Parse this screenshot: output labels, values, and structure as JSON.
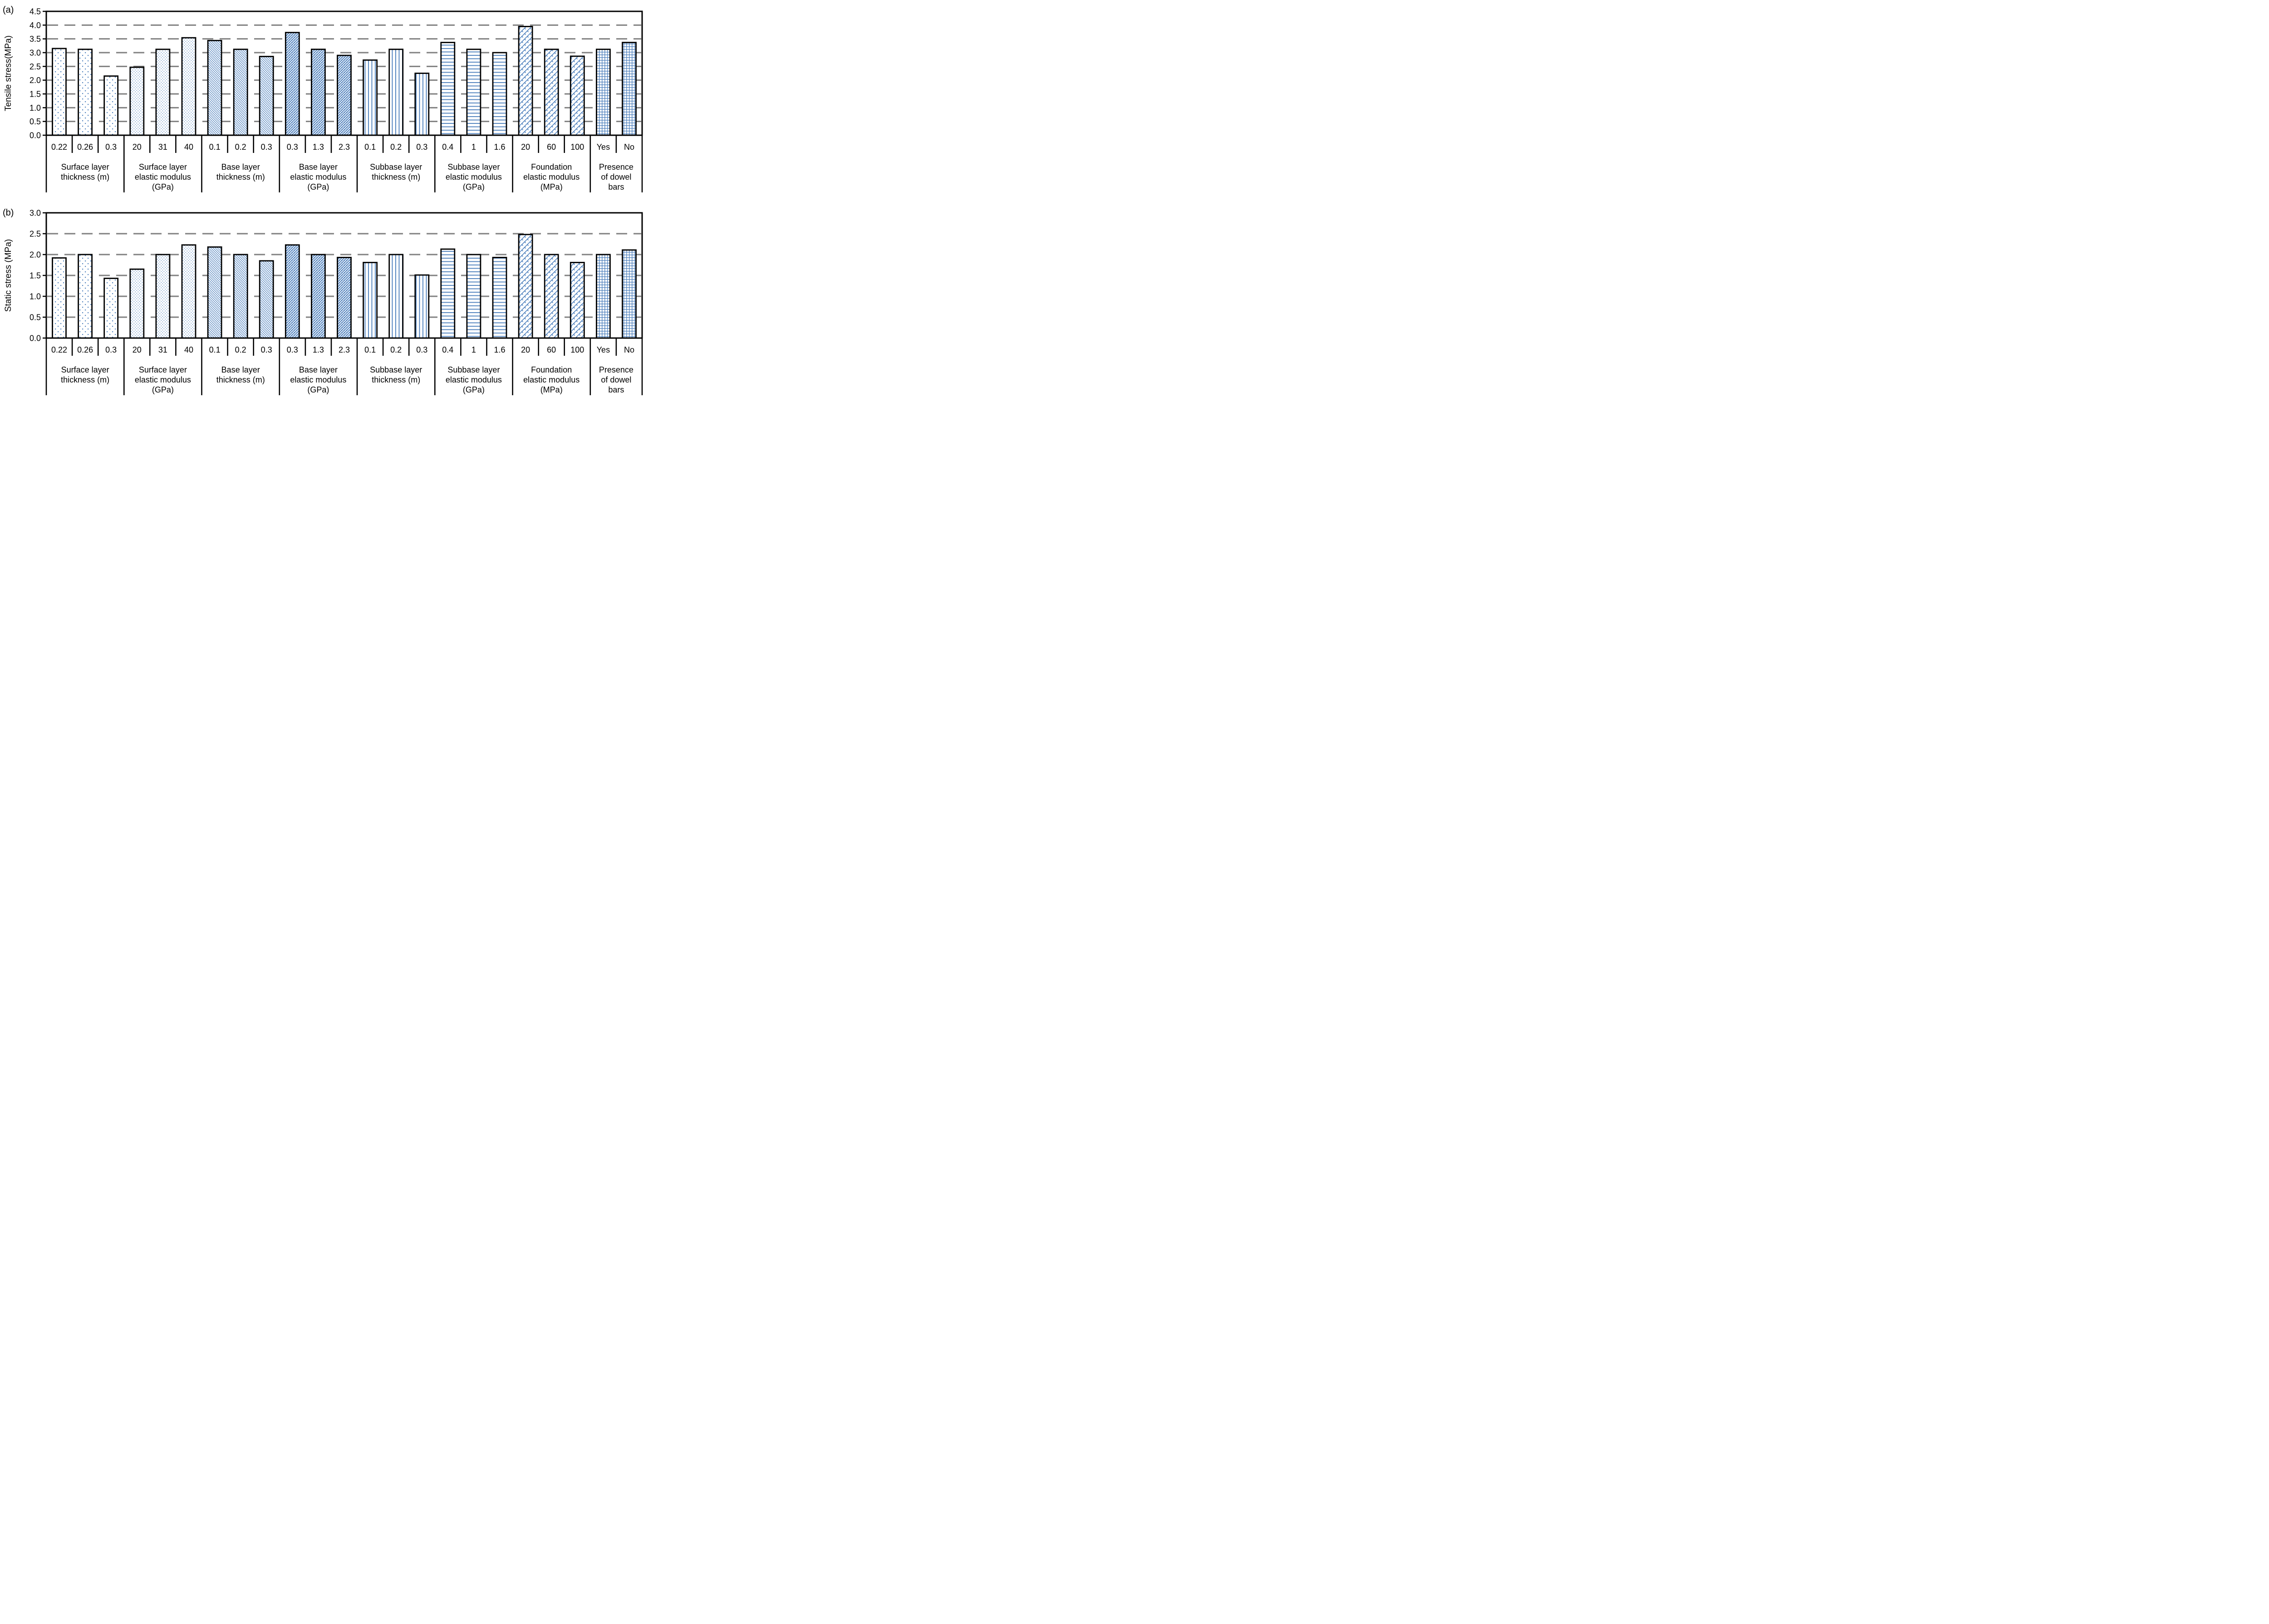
{
  "figure_type": "two-panel grouped bar chart, sensitivity analysis of pavement parameters",
  "colors": {
    "bar_pattern_blue": "#4f81bd",
    "bar_outline": "#000000",
    "gridline_gray": "#808080",
    "text_black": "#000000",
    "background": "#ffffff"
  },
  "chart_data": [
    {
      "type": "bar",
      "panel_letter": "(a)",
      "ylabel": "Tensile stress(MPa)",
      "ylim": [
        0,
        4.5
      ],
      "ytick_step": 0.5,
      "yticks": [
        "4.5",
        "4.0",
        "3.5",
        "3.0",
        "2.5",
        "2.0",
        "1.5",
        "1.0",
        "0.5",
        "0.0"
      ],
      "grid": "horizontal dashed gray at every 0.5",
      "legend": "none",
      "groups": [
        {
          "label": "Surface layer thickness (m)",
          "label_lines": [
            "Surface layer",
            "thickness (m)"
          ],
          "pattern": "dots-sparse",
          "categories": [
            "0.22",
            "0.26",
            "0.3"
          ],
          "values": [
            3.15,
            3.12,
            2.15
          ]
        },
        {
          "label": "Surface layer elastic modulus (GPa)",
          "label_lines": [
            "Surface layer",
            "elastic modulus",
            "(GPa)"
          ],
          "pattern": "dots-dense",
          "categories": [
            "20",
            "31",
            "40"
          ],
          "values": [
            2.47,
            3.12,
            3.54
          ]
        },
        {
          "label": "Base layer thickness (m)",
          "label_lines": [
            "Base layer",
            "thickness (m)"
          ],
          "pattern": "diagonal-down",
          "categories": [
            "0.1",
            "0.2",
            "0.3"
          ],
          "values": [
            3.44,
            3.12,
            2.86
          ]
        },
        {
          "label": "Base layer elastic modulus (GPa)",
          "label_lines": [
            "Base layer",
            "elastic modulus",
            "(GPa)"
          ],
          "pattern": "diagonal-up",
          "categories": [
            "0.3",
            "1.3",
            "2.3"
          ],
          "values": [
            3.73,
            3.12,
            2.9
          ]
        },
        {
          "label": "Subbase layer thickness (m)",
          "label_lines": [
            "Subbase layer",
            "thickness (m)"
          ],
          "pattern": "vertical-lines",
          "categories": [
            "0.1",
            "0.2",
            "0.3"
          ],
          "values": [
            2.73,
            3.12,
            2.25
          ]
        },
        {
          "label": "Subbase layer elastic modulus (GPa)",
          "label_lines": [
            "Subbase layer",
            "elastic modulus",
            "(GPa)"
          ],
          "pattern": "horizontal-lines",
          "categories": [
            "0.4",
            "1",
            "1.6"
          ],
          "values": [
            3.37,
            3.12,
            3.0
          ]
        },
        {
          "label": "Foundation elastic modulus (MPa)",
          "label_lines": [
            "Foundation",
            "elastic modulus",
            "(MPa)"
          ],
          "pattern": "diagonal-brick",
          "categories": [
            "20",
            "60",
            "100"
          ],
          "values": [
            3.95,
            3.12,
            2.87
          ]
        },
        {
          "label": "Presence of dowel bars",
          "label_lines": [
            "Presence",
            "of dowel",
            "bars"
          ],
          "pattern": "grid",
          "categories": [
            "Yes",
            "No"
          ],
          "values": [
            3.12,
            3.37
          ]
        }
      ]
    },
    {
      "type": "bar",
      "panel_letter": "(b)",
      "ylabel": "Static stress (MPa)",
      "ylim": [
        0,
        3.0
      ],
      "ytick_step": 0.5,
      "yticks": [
        "3.0",
        "2.5",
        "2.0",
        "1.5",
        "1.0",
        "0.5",
        "0.0"
      ],
      "grid": "horizontal dashed gray at every 0.5",
      "legend": "none",
      "groups": [
        {
          "label": "Surface layer thickness (m)",
          "label_lines": [
            "Surface layer",
            "thickness (m)"
          ],
          "pattern": "dots-sparse",
          "categories": [
            "0.22",
            "0.26",
            "0.3"
          ],
          "values": [
            1.92,
            2.0,
            1.43
          ]
        },
        {
          "label": "Surface layer elastic modulus (GPa)",
          "label_lines": [
            "Surface layer",
            "elastic modulus",
            "(GPa)"
          ],
          "pattern": "dots-dense",
          "categories": [
            "20",
            "31",
            "40"
          ],
          "values": [
            1.65,
            2.0,
            2.23
          ]
        },
        {
          "label": "Base layer thickness (m)",
          "label_lines": [
            "Base layer",
            "thickness (m)"
          ],
          "pattern": "diagonal-down",
          "categories": [
            "0.1",
            "0.2",
            "0.3"
          ],
          "values": [
            2.18,
            2.0,
            1.85
          ]
        },
        {
          "label": "Base layer elastic modulus (GPa)",
          "label_lines": [
            "Base layer",
            "elastic modulus",
            "(GPa)"
          ],
          "pattern": "diagonal-up",
          "categories": [
            "0.3",
            "1.3",
            "2.3"
          ],
          "values": [
            2.23,
            2.0,
            1.93
          ]
        },
        {
          "label": "Subbase layer thickness (m)",
          "label_lines": [
            "Subbase layer",
            "thickness (m)"
          ],
          "pattern": "vertical-lines",
          "categories": [
            "0.1",
            "0.2",
            "0.3"
          ],
          "values": [
            1.81,
            2.0,
            1.51
          ]
        },
        {
          "label": "Subbase layer elastic modulus (GPa)",
          "label_lines": [
            "Subbase layer",
            "elastic modulus",
            "(GPa)"
          ],
          "pattern": "horizontal-lines",
          "categories": [
            "0.4",
            "1",
            "1.6"
          ],
          "values": [
            2.13,
            2.0,
            1.93
          ]
        },
        {
          "label": "Foundation elastic modulus (MPa)",
          "label_lines": [
            "Foundation",
            "elastic modulus",
            "(MPa)"
          ],
          "pattern": "diagonal-brick",
          "categories": [
            "20",
            "60",
            "100"
          ],
          "values": [
            2.48,
            2.0,
            1.81
          ]
        },
        {
          "label": "Presence of dowel bars",
          "label_lines": [
            "Presence",
            "of dowel",
            "bars"
          ],
          "pattern": "grid",
          "categories": [
            "Yes",
            "No"
          ],
          "values": [
            2.0,
            2.11
          ]
        }
      ]
    }
  ]
}
